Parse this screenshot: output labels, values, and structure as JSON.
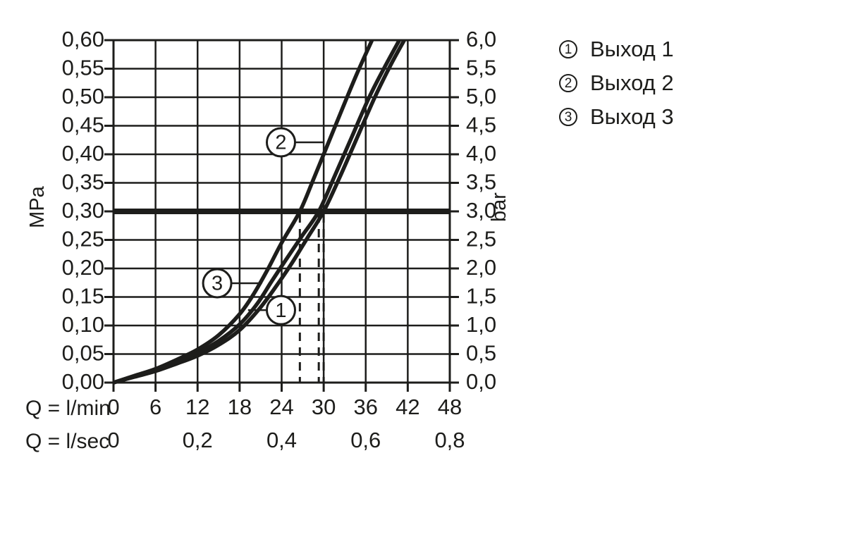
{
  "legend": {
    "items": [
      {
        "symbol": "1",
        "label": "Выход 1"
      },
      {
        "symbol": "2",
        "label": "Выход 2"
      },
      {
        "symbol": "3",
        "label": "Выход 3"
      }
    ]
  },
  "chart_data": {
    "type": "line",
    "ink_color": "#1d1d1b",
    "background": "#ffffff",
    "grid": true,
    "x_axis_lmin": {
      "prefix": "Q = l/min",
      "ticks": [
        0,
        6,
        12,
        18,
        24,
        30,
        36,
        42,
        48
      ],
      "range": [
        0,
        48
      ]
    },
    "x_axis_lsec": {
      "prefix": "Q = l/sec",
      "ticks": [
        {
          "lmin": 0,
          "label": "0"
        },
        {
          "lmin": 12,
          "label": "0,2"
        },
        {
          "lmin": 24,
          "label": "0,4"
        },
        {
          "lmin": 36,
          "label": "0,6"
        },
        {
          "lmin": 48,
          "label": "0,8"
        }
      ]
    },
    "y_left": {
      "unit": "MPa",
      "min": 0,
      "max": 0.6,
      "step": 0.05
    },
    "y_right": {
      "unit": "bar",
      "min": 0,
      "max": 6.0,
      "step": 0.5
    },
    "reference_line": {
      "mpa": 0.3,
      "bar": 3.0
    },
    "dashed_guides_lmin": [
      26.6,
      29.3,
      30.0
    ],
    "series": [
      {
        "id": 1,
        "name": "Выход 1",
        "points": [
          [
            0,
            0
          ],
          [
            3,
            0.01
          ],
          [
            6,
            0.02
          ],
          [
            9,
            0.033
          ],
          [
            12,
            0.047
          ],
          [
            15,
            0.066
          ],
          [
            18,
            0.092
          ],
          [
            21,
            0.132
          ],
          [
            23.4,
            0.172
          ],
          [
            25.5,
            0.21
          ],
          [
            27.6,
            0.252
          ],
          [
            30,
            0.3
          ],
          [
            32.3,
            0.36
          ],
          [
            34.8,
            0.43
          ],
          [
            37.3,
            0.5
          ],
          [
            39.5,
            0.555
          ],
          [
            41.5,
            0.6
          ]
        ]
      },
      {
        "id": 2,
        "name": "Выход 2",
        "points": [
          [
            0,
            0
          ],
          [
            3,
            0.012
          ],
          [
            6,
            0.024
          ],
          [
            9,
            0.04
          ],
          [
            12,
            0.058
          ],
          [
            15,
            0.083
          ],
          [
            18,
            0.12
          ],
          [
            20,
            0.155
          ],
          [
            22,
            0.198
          ],
          [
            24,
            0.245
          ],
          [
            26.6,
            0.3
          ],
          [
            28.5,
            0.355
          ],
          [
            30.5,
            0.415
          ],
          [
            32.5,
            0.475
          ],
          [
            34.7,
            0.54
          ],
          [
            36.9,
            0.6
          ]
        ]
      },
      {
        "id": 3,
        "name": "Выход 3",
        "points": [
          [
            0,
            0
          ],
          [
            3,
            0.011
          ],
          [
            6,
            0.022
          ],
          [
            9,
            0.036
          ],
          [
            12,
            0.052
          ],
          [
            15,
            0.073
          ],
          [
            18,
            0.102
          ],
          [
            20.5,
            0.138
          ],
          [
            22.6,
            0.178
          ],
          [
            24.6,
            0.215
          ],
          [
            26.8,
            0.255
          ],
          [
            29.3,
            0.3
          ],
          [
            31.5,
            0.36
          ],
          [
            34,
            0.43
          ],
          [
            36.5,
            0.5
          ],
          [
            38.8,
            0.555
          ],
          [
            40.8,
            0.6
          ]
        ]
      }
    ],
    "annotations": [
      {
        "symbol": "1",
        "center": [
          23.9,
          0.127
        ],
        "leader_to": [
          19.2,
          0.127
        ]
      },
      {
        "symbol": "2",
        "center": [
          23.9,
          0.421
        ],
        "leader_to": [
          29.9,
          0.421
        ]
      },
      {
        "symbol": "3",
        "center": [
          14.8,
          0.174
        ],
        "leader_to": [
          21.2,
          0.174
        ]
      }
    ]
  }
}
